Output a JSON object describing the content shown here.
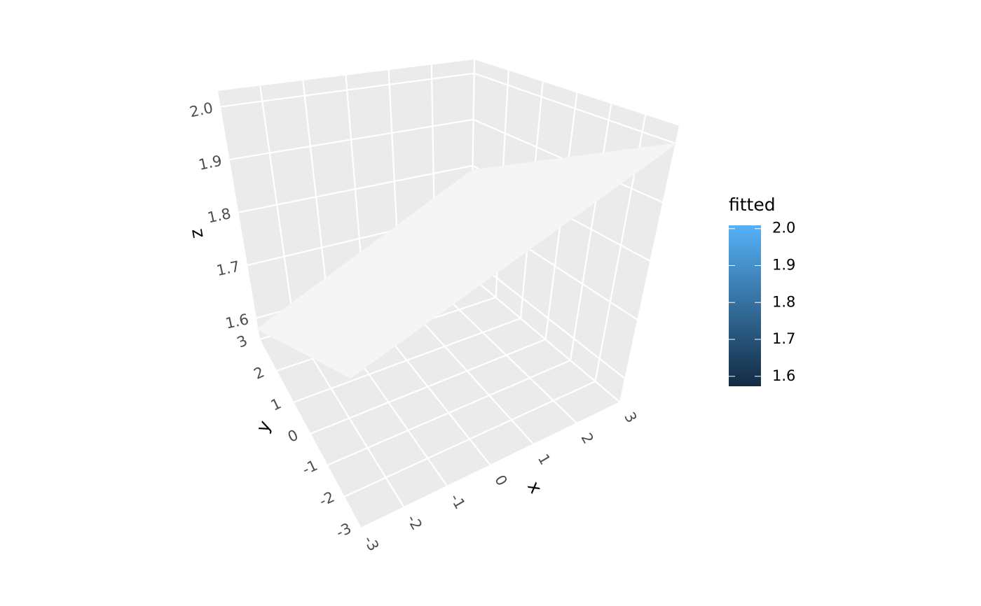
{
  "chart_data": {
    "type": "surface3d",
    "x_label": "x",
    "y_label": "y",
    "z_label": "z",
    "xlim": [
      -3,
      3
    ],
    "ylim": [
      -3,
      3
    ],
    "zlim": [
      1.56,
      2.03
    ],
    "xticks": [
      -3,
      -2,
      -1,
      0,
      1,
      2,
      3
    ],
    "yticks": [
      -3,
      -2,
      -1,
      0,
      1,
      2,
      3
    ],
    "zticks": [
      {
        "value": 1.6,
        "label": "1.6"
      },
      {
        "value": 1.7,
        "label": "1.7"
      },
      {
        "value": 1.8,
        "label": "1.8"
      },
      {
        "value": 1.9,
        "label": "1.9"
      },
      {
        "value": 2.0,
        "label": "2.0"
      }
    ],
    "surface": {
      "x": [
        -3,
        3
      ],
      "y": [
        -3,
        3
      ],
      "z": [
        [
          1.79,
          1.58
        ],
        [
          2.0,
          1.79
        ]
      ],
      "color": "#f5f5f5"
    },
    "panel_color": "#ebebeb",
    "grid": true,
    "legend": {
      "title": "fitted",
      "low_color": "#132B43",
      "high_color": "#56B1F7",
      "lim": [
        1.573,
        2.009
      ],
      "ticks": [
        {
          "value": 1.6,
          "label": "1.6"
        },
        {
          "value": 1.7,
          "label": "1.7"
        },
        {
          "value": 1.8,
          "label": "1.8"
        },
        {
          "value": 1.9,
          "label": "1.9"
        },
        {
          "value": 2.0,
          "label": "2.0"
        }
      ]
    }
  }
}
